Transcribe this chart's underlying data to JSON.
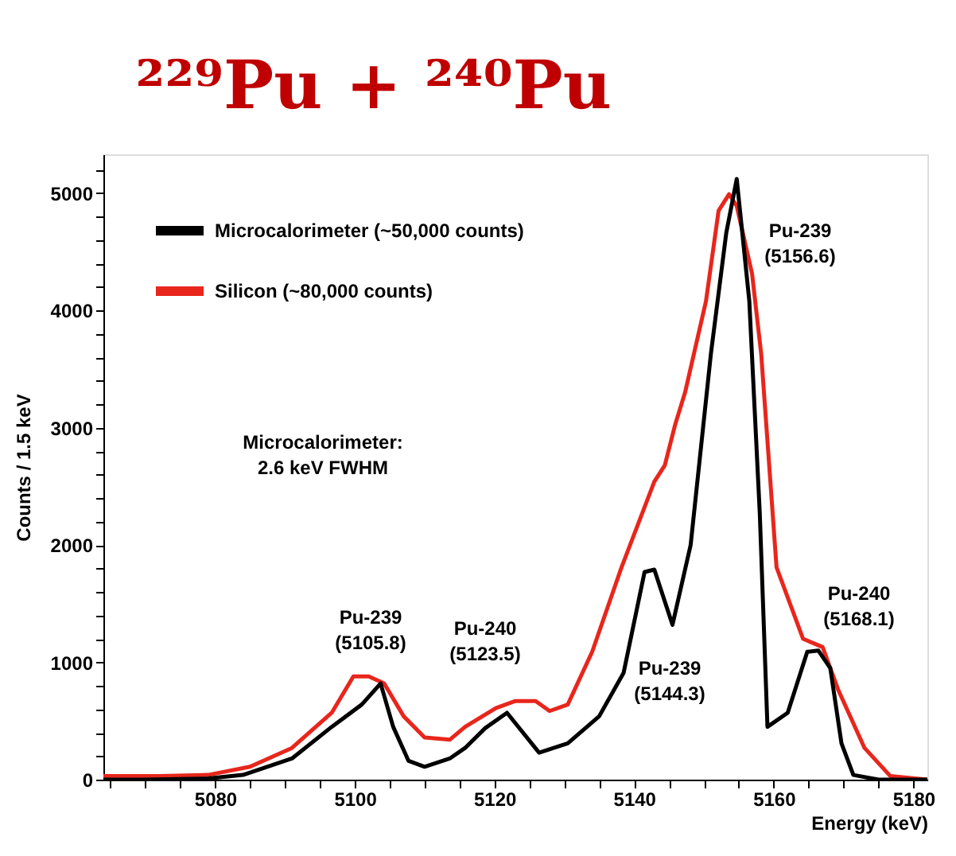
{
  "chart_data": {
    "type": "line",
    "title": "²²⁹Pu + ²⁴⁰Pu",
    "xlabel": "Energy (keV)",
    "ylabel": "Counts / 1.5 keV",
    "xlim": [
      5064,
      5182
    ],
    "ylim": [
      0,
      5330
    ],
    "xticks": [
      {
        "value": 5065,
        "label": null
      },
      {
        "value": 5070,
        "label": null
      },
      {
        "value": 5075,
        "label": null
      },
      5080,
      {
        "value": 5085,
        "label": null
      },
      {
        "value": 5090,
        "label": null
      },
      {
        "value": 5095,
        "label": null
      },
      5100,
      {
        "value": 5105,
        "label": null
      },
      {
        "value": 5110,
        "label": null
      },
      {
        "value": 5115,
        "label": null
      },
      5120,
      {
        "value": 5125,
        "label": null
      },
      {
        "value": 5130,
        "label": null
      },
      {
        "value": 5135,
        "label": null
      },
      5140,
      {
        "value": 5145,
        "label": null
      },
      {
        "value": 5150,
        "label": null
      },
      {
        "value": 5155,
        "label": null
      },
      5160,
      {
        "value": 5165,
        "label": null
      },
      {
        "value": 5170,
        "label": null
      },
      {
        "value": 5175,
        "label": null
      },
      5180
    ],
    "yticks": [
      0,
      {
        "value": 200,
        "label": null
      },
      {
        "value": 400,
        "label": null
      },
      {
        "value": 600,
        "label": null
      },
      {
        "value": 800,
        "label": null
      },
      1000,
      {
        "value": 1200,
        "label": null
      },
      {
        "value": 1400,
        "label": null
      },
      {
        "value": 1600,
        "label": null
      },
      {
        "value": 1800,
        "label": null
      },
      2000,
      {
        "value": 2200,
        "label": null
      },
      {
        "value": 2400,
        "label": null
      },
      {
        "value": 2600,
        "label": null
      },
      {
        "value": 2800,
        "label": null
      },
      3000,
      {
        "value": 3200,
        "label": null
      },
      {
        "value": 3400,
        "label": null
      },
      {
        "value": 3600,
        "label": null
      },
      {
        "value": 3800,
        "label": null
      },
      4000,
      {
        "value": 4200,
        "label": null
      },
      {
        "value": 4400,
        "label": null
      },
      {
        "value": 4600,
        "label": null
      },
      {
        "value": 4800,
        "label": null
      },
      5000,
      {
        "value": 5200,
        "label": null
      }
    ],
    "grid": false,
    "legend": "top left",
    "marker": "none",
    "line_style": "solid",
    "series": [
      {
        "name": "Microcalorimeter (~50,000 counts)",
        "color": "#000000",
        "x": [
          5064,
          5070,
          5079,
          5084,
          5091,
          5096.7,
          5101,
          5103.7,
          5105.5,
          5107.7,
          5110,
          5113.6,
          5115.8,
          5118.7,
          5121.8,
          5126.4,
          5130.5,
          5135,
          5138.5,
          5141.5,
          5142.9,
          5145.5,
          5148.1,
          5151,
          5153.2,
          5154.7,
          5156.5,
          5158,
          5159.1,
          5162,
          5164.8,
          5166.4,
          5168.1,
          5169.7,
          5171.4,
          5175,
          5182
        ],
        "values": [
          0,
          0,
          10,
          40,
          180,
          450,
          640,
          820,
          450,
          160,
          110,
          180,
          270,
          440,
          570,
          230,
          310,
          540,
          910,
          1770,
          1790,
          1320,
          2000,
          3630,
          4660,
          5120,
          4080,
          2270,
          450,
          570,
          1090,
          1100,
          950,
          310,
          40,
          0,
          0
        ]
      },
      {
        "name": "Silicon (~80,000 counts)",
        "color": "#e8261c",
        "x": [
          5064,
          5072,
          5079,
          5085,
          5091,
          5096.7,
          5099.8,
          5102,
          5104.2,
          5107,
          5110,
          5113.6,
          5115.8,
          5120.2,
          5123,
          5125.9,
          5127.9,
          5130.5,
          5134,
          5138.2,
          5142.9,
          5144.4,
          5145.9,
          5147.3,
          5150.3,
          5152.1,
          5153.6,
          5154.7,
          5156.9,
          5158.2,
          5160.4,
          5164.2,
          5167,
          5169.2,
          5173,
          5176.7,
          5182
        ],
        "values": [
          30,
          30,
          40,
          110,
          270,
          570,
          880,
          880,
          820,
          540,
          360,
          340,
          450,
          610,
          670,
          670,
          585,
          640,
          1090,
          1810,
          2540,
          2680,
          3030,
          3300,
          4080,
          4850,
          4990,
          4890,
          4310,
          3630,
          1810,
          1200,
          1130,
          770,
          270,
          30,
          0
        ]
      }
    ],
    "annotations": [
      "Microcalorimeter:\n2.6 keV FWHM",
      "Pu-239\n(5105.8)",
      "Pu-240\n(5123.5)",
      "Pu-239\n(5144.3)",
      "Pu-239\n(5156.6)",
      "Pu-240\n(5168.1)"
    ]
  }
}
